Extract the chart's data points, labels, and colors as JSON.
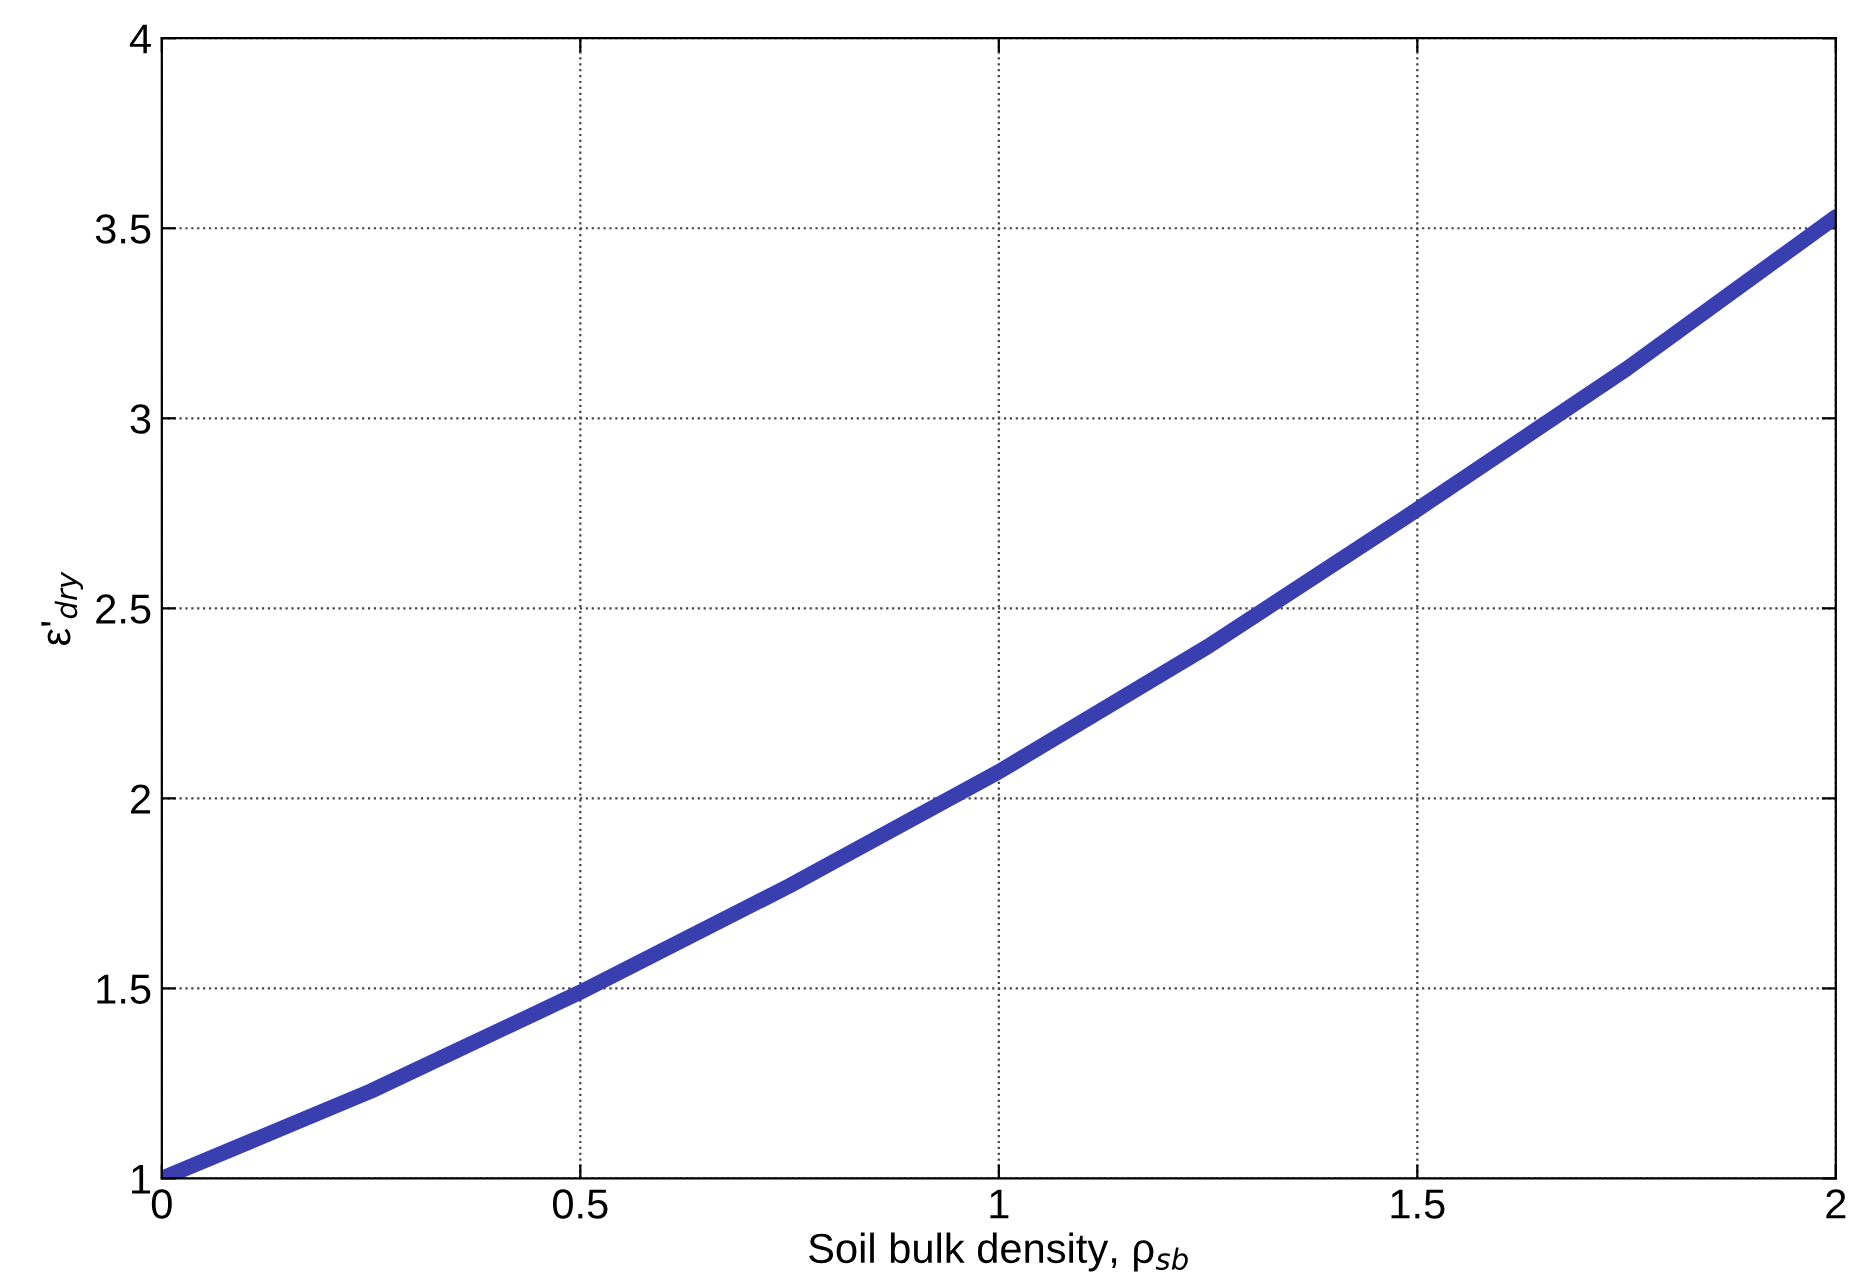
{
  "chart_data": {
    "type": "line",
    "xlabel": "Soil bulk density, ρ$_{sb}$",
    "ylabel": "ε'$_{dry}$",
    "x": [
      0,
      0.25,
      0.5,
      0.75,
      1.0,
      1.25,
      1.5,
      1.75,
      2.0
    ],
    "series": [
      {
        "color": "#3a3fb0",
        "values": [
          1.0,
          1.23,
          1.49,
          1.77,
          2.07,
          2.4,
          2.76,
          3.13,
          3.53
        ]
      }
    ],
    "xlim": [
      0,
      2
    ],
    "xticks": [
      0,
      0.5,
      1,
      1.5,
      2
    ],
    "ylim": [
      1,
      4
    ],
    "yticks": [
      1,
      1.5,
      2,
      2.5,
      3,
      3.5,
      4
    ],
    "grid": true,
    "marker": "none",
    "line_style": "solid"
  }
}
